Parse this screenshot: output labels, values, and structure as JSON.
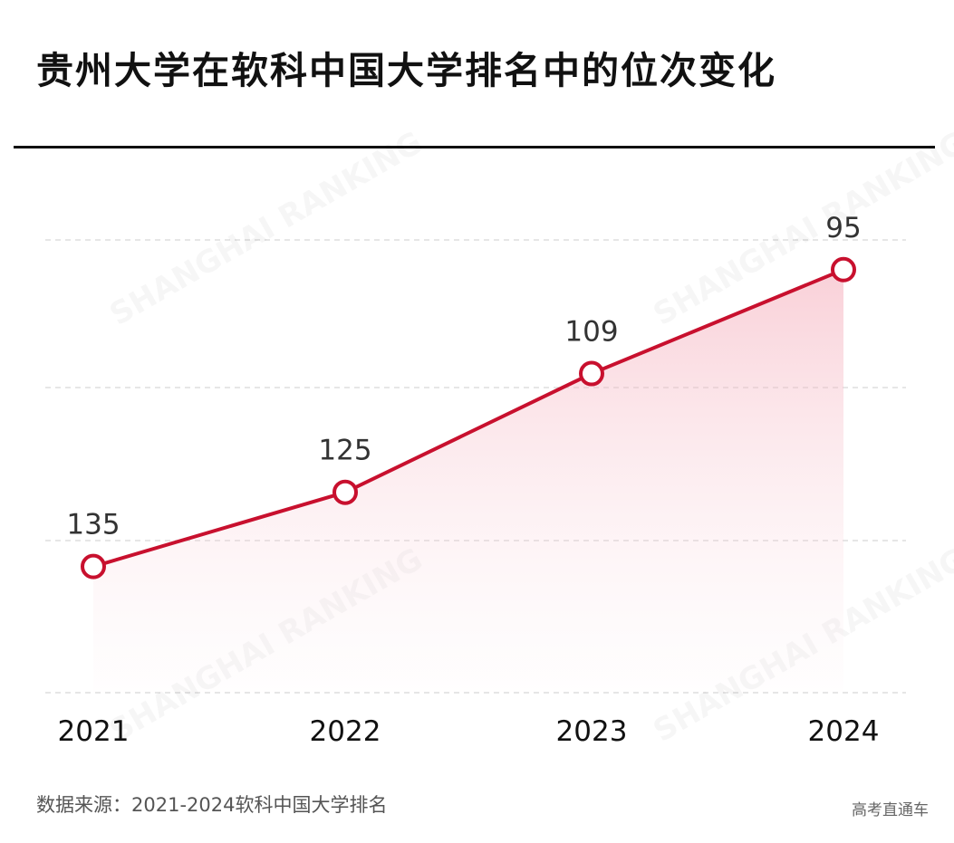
{
  "title": "贵州大学在软科中国大学排名中的位次变化",
  "source": "数据来源：2021-2024软科中国大学排名",
  "brand": "高考直通车",
  "watermark": "SHANGHAI RANKING",
  "colors": {
    "line": "#c8102e",
    "fill": "#f7c6cf",
    "grid": "#dddddd"
  },
  "chart_data": {
    "type": "line",
    "categories": [
      "2021",
      "2022",
      "2023",
      "2024"
    ],
    "values": [
      135,
      125,
      109,
      95
    ],
    "data_labels": [
      "135",
      "125",
      "109",
      "95"
    ],
    "y_inverted": true,
    "ylim": [
      152,
      91
    ],
    "grid": true,
    "area_fill": true,
    "title": "贵州大学在软科中国大学排名中的位次变化"
  }
}
